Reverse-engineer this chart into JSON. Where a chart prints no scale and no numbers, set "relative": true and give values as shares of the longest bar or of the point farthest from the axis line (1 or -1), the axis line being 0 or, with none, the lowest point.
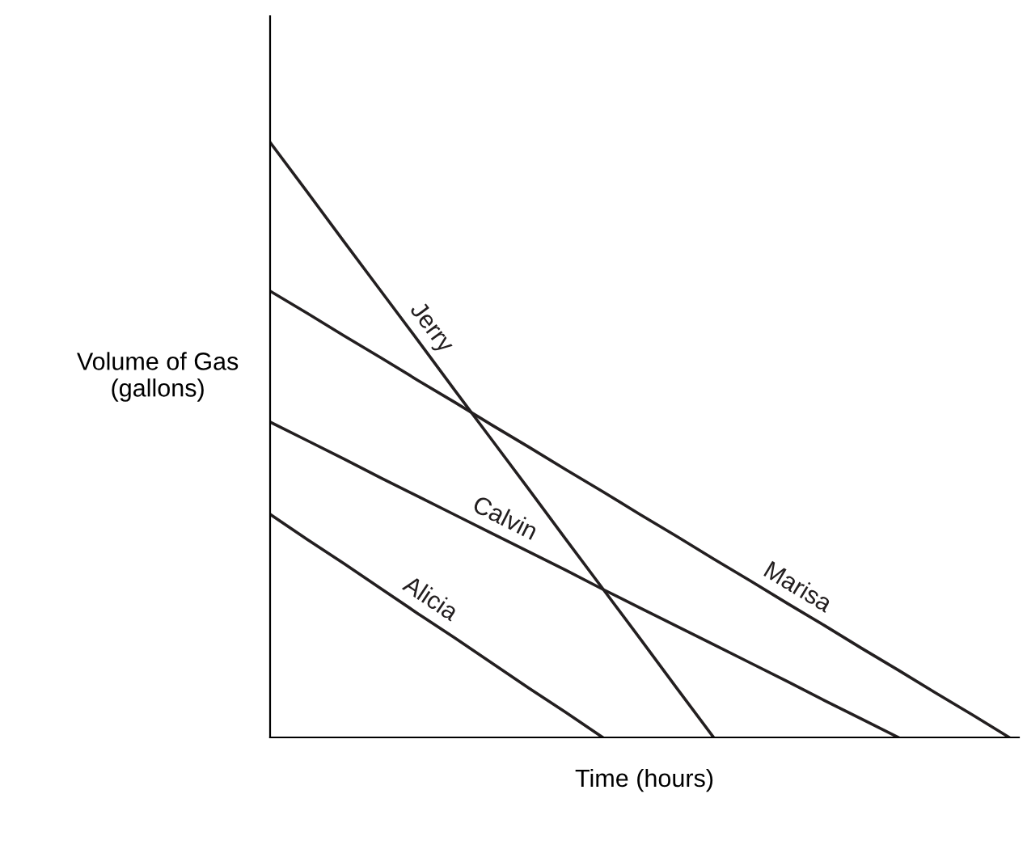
{
  "chart_data": {
    "type": "line",
    "relative": true,
    "xlabel": "Time (hours)",
    "ylabel": "Volume of Gas\n(gallons)",
    "legend": false,
    "marker": "none",
    "line_style": "solid",
    "categories": [
      null,
      null,
      null,
      null,
      null,
      null,
      null,
      null,
      null,
      null,
      null,
      null,
      null,
      null,
      null,
      null,
      null,
      null,
      null,
      null,
      null
    ],
    "series": [
      {
        "name": "Jerry",
        "color": "#231f20",
        "values": [
          1,
          0.917,
          0.833,
          0.75,
          0.667,
          0.583,
          0.5,
          0.417,
          0.333,
          0.25,
          0.167,
          0.083,
          0,
          null,
          null,
          null,
          null,
          null,
          null,
          null,
          null
        ]
      },
      {
        "name": "Marisa",
        "color": "#231f20",
        "values": [
          0.75,
          0.713,
          0.675,
          0.638,
          0.6,
          0.563,
          0.525,
          0.488,
          0.45,
          0.413,
          0.375,
          0.338,
          0.3,
          0.263,
          0.225,
          0.188,
          0.15,
          0.113,
          0.075,
          0.038,
          0
        ]
      },
      {
        "name": "Calvin",
        "color": "#231f20",
        "values": [
          0.53,
          0.499,
          0.468,
          0.436,
          0.405,
          0.374,
          0.343,
          0.312,
          0.281,
          0.249,
          0.218,
          0.187,
          0.156,
          0.125,
          0.094,
          0.062,
          0.031,
          0,
          null,
          null,
          null
        ]
      },
      {
        "name": "Alicia",
        "color": "#231f20",
        "values": [
          0.375,
          0.333,
          0.292,
          0.25,
          0.208,
          0.167,
          0.125,
          0.083,
          0.042,
          0,
          null,
          null,
          null,
          null,
          null,
          null,
          null,
          null,
          null,
          null,
          null
        ]
      }
    ]
  }
}
